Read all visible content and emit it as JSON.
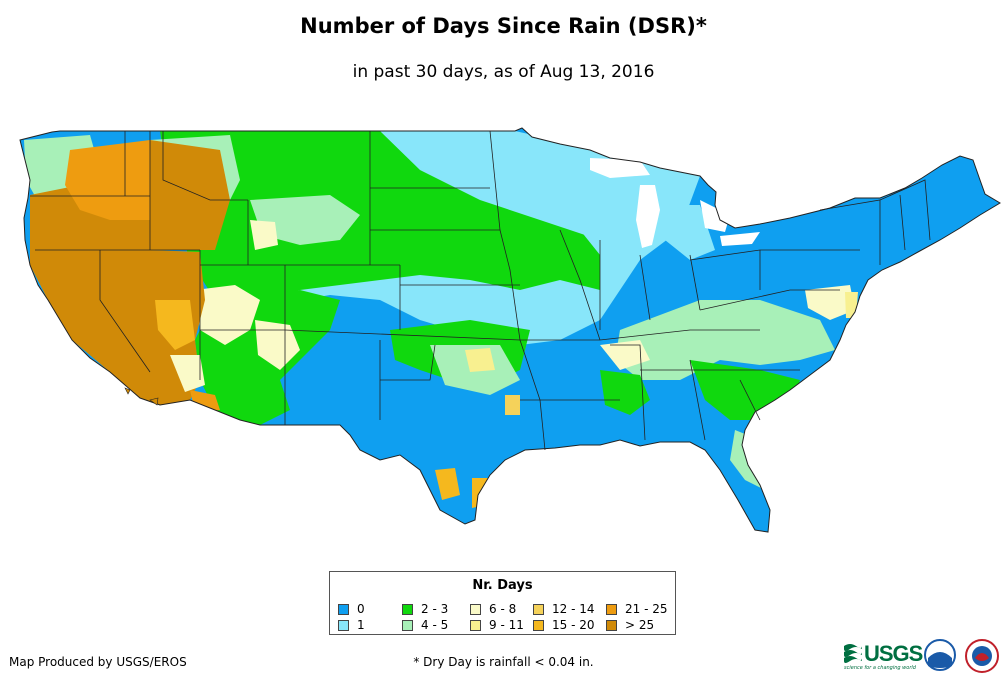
{
  "title": "Number of Days Since Rain (DSR)*",
  "subtitle": "in past 30 days, as of Aug 13, 2016",
  "legend": {
    "title": "Nr. Days",
    "items": [
      {
        "label": "0",
        "color": "#0f9ff0"
      },
      {
        "label": "1",
        "color": "#88e6fa"
      },
      {
        "label": "2 - 3",
        "color": "#10d80e"
      },
      {
        "label": "4 - 5",
        "color": "#a8f0b8"
      },
      {
        "label": "6 - 8",
        "color": "#fafac8"
      },
      {
        "label": "9 - 11",
        "color": "#f8f090"
      },
      {
        "label": "12 - 14",
        "color": "#f5d25a"
      },
      {
        "label": "15 - 20",
        "color": "#f5b81e"
      },
      {
        "label": "21 - 25",
        "color": "#ee9c10"
      },
      {
        "label": "> 25",
        "color": "#d08a08"
      }
    ]
  },
  "credit": "Map Produced by USGS/EROS",
  "footnote": "* Dry Day is rainfall < 0.04 in.",
  "logos": {
    "usgs": "USGS",
    "usgs_tagline": "science for a changing world"
  }
}
